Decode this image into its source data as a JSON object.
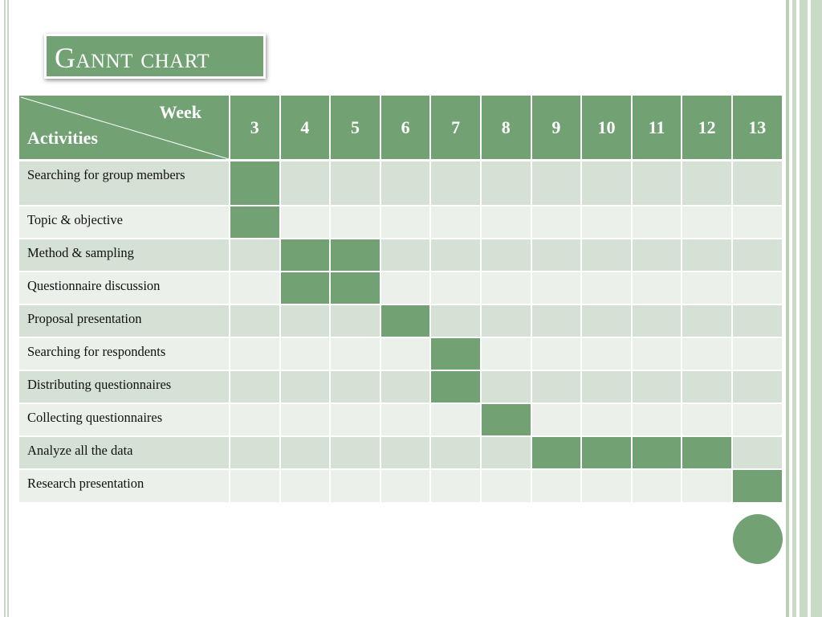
{
  "title": "Gannt chart",
  "colors": {
    "accent": "#72a274",
    "row_dark": "#d5e1d4",
    "row_light": "#ebf0ea"
  },
  "header": {
    "week_label": "Week",
    "activities_label": "Activities"
  },
  "weeks": [
    "3",
    "4",
    "5",
    "6",
    "7",
    "8",
    "9",
    "10",
    "11",
    "12",
    "13"
  ],
  "activities": [
    {
      "label": "Searching for group members",
      "weeks_active": [
        "3"
      ]
    },
    {
      "label": "Topic & objective",
      "weeks_active": [
        "3"
      ]
    },
    {
      "label": "Method & sampling",
      "weeks_active": [
        "4",
        "5"
      ]
    },
    {
      "label": "Questionnaire discussion",
      "weeks_active": [
        "4",
        "5"
      ]
    },
    {
      "label": "Proposal presentation",
      "weeks_active": [
        "6"
      ]
    },
    {
      "label": "Searching for respondents",
      "weeks_active": [
        "7"
      ]
    },
    {
      "label": "Distributing questionnaires",
      "weeks_active": [
        "7"
      ]
    },
    {
      "label": "Collecting questionnaires",
      "weeks_active": [
        "8"
      ]
    },
    {
      "label": "Analyze all the data",
      "weeks_active": [
        "9",
        "10",
        "11",
        "12"
      ]
    },
    {
      "label": "Research presentation",
      "weeks_active": [
        "13"
      ]
    }
  ]
}
